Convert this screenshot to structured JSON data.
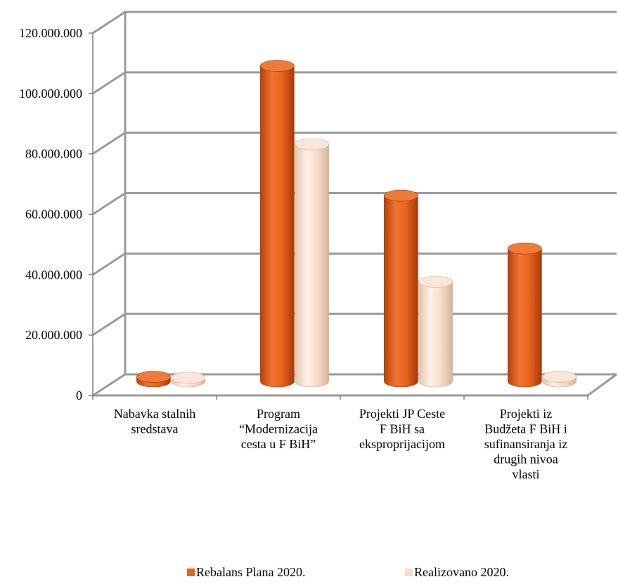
{
  "chart_data": {
    "type": "bar",
    "title": "",
    "xlabel": "",
    "ylabel": "",
    "ylim": [
      0,
      120000000
    ],
    "y_ticks": [
      0,
      20000000,
      40000000,
      60000000,
      80000000,
      100000000,
      120000000
    ],
    "y_tick_labels": [
      "0",
      "20.000.000",
      "40.000.000",
      "60.000.000",
      "80.000.000",
      "100.000.000",
      "120.000.000"
    ],
    "grid": true,
    "legend_position": "bottom",
    "categories": [
      [
        "Nabavka stalnih",
        "sredstava"
      ],
      [
        "Program",
        "“Modernizacija",
        "cesta u F BiH”"
      ],
      [
        "Projekti JP Ceste",
        "F BiH sa",
        "eksproprijacijom"
      ],
      [
        "Projekti iz",
        "Budžeta F BiH i",
        "sufinansiranja iz",
        "drugih nivoa",
        "vlasti"
      ]
    ],
    "series": [
      {
        "name": "Rebalans Plana 2020.",
        "color": "#e8621e",
        "values": [
          1500000,
          104500000,
          61500000,
          44000000
        ]
      },
      {
        "name": "Realizovano 2020.",
        "color": "#f7dccb",
        "values": [
          1200000,
          78500000,
          33000000,
          1500000
        ]
      }
    ]
  }
}
